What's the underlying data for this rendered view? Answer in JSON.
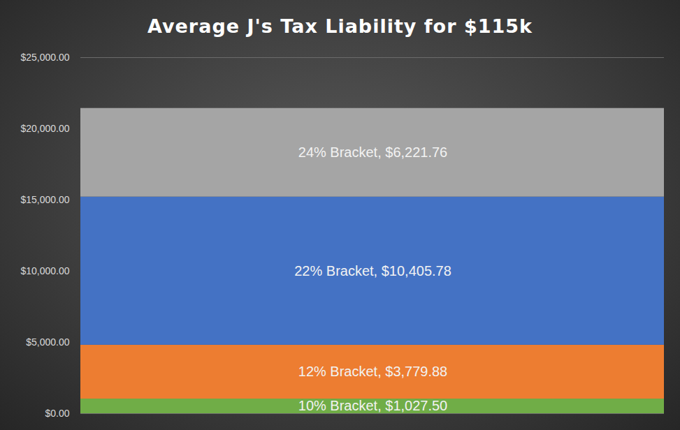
{
  "chart_data": {
    "type": "bar",
    "title": "Average J's Tax Liability for $115k",
    "categories": [
      null
    ],
    "stacked": true,
    "data_labels": true,
    "grid": true,
    "ylim": [
      0,
      25000
    ],
    "yticks": [
      {
        "value": 0,
        "label": "$0.00"
      },
      {
        "value": 5000,
        "label": "$5,000.00"
      },
      {
        "value": 10000,
        "label": "$10,000.00"
      },
      {
        "value": 15000,
        "label": "$15,000.00"
      },
      {
        "value": 20000,
        "label": "$20,000.00"
      },
      {
        "value": 25000,
        "label": "$25,000.00"
      }
    ],
    "series": [
      {
        "name": "10% Bracket",
        "color": "#70ad47",
        "values": [
          1027.5
        ],
        "value_labels": [
          "10% Bracket, $1,027.50"
        ]
      },
      {
        "name": "12% Bracket",
        "color": "#ed7d31",
        "values": [
          3779.88
        ],
        "value_labels": [
          "12% Bracket, $3,779.88"
        ]
      },
      {
        "name": "22% Bracket",
        "color": "#4472c4",
        "values": [
          10405.78
        ],
        "value_labels": [
          "22% Bracket, $10,405.78"
        ]
      },
      {
        "name": "24% Bracket",
        "color": "#a5a5a5",
        "values": [
          6221.76
        ],
        "value_labels": [
          "24% Bracket, $6,221.76"
        ]
      }
    ]
  }
}
